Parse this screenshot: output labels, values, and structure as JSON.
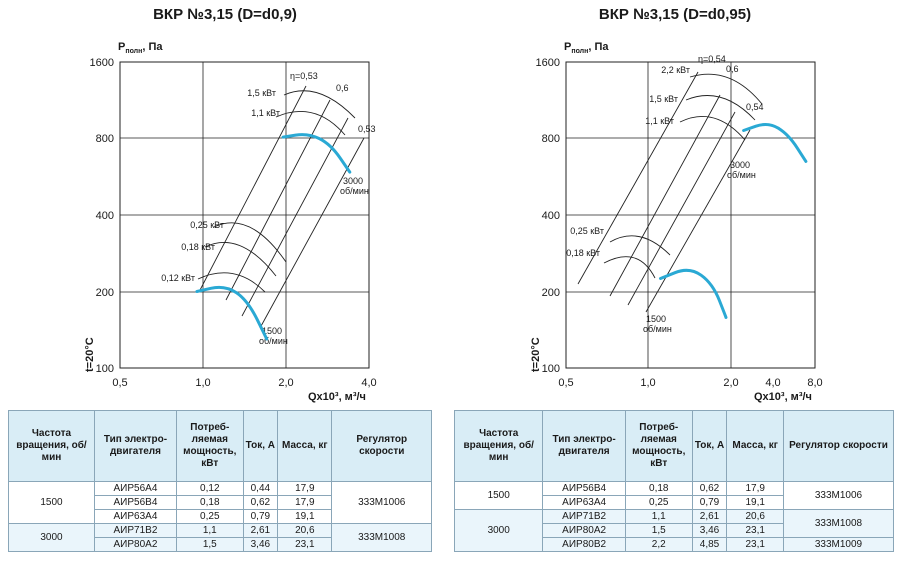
{
  "charts": [
    {
      "title": "ВКР №3,15 (D=d0,9)",
      "ylabel": "Pполн, Па",
      "ylabel_main": "P",
      "ylabel_sub": "полн",
      "ylabel_unit": ", Па",
      "xlabel": "Qx10³, м³/ч",
      "temp_label": "t=20°C",
      "yticks": [
        "1600",
        "800",
        "400",
        "200",
        "100"
      ],
      "xticks": [
        "0,5",
        "1,0",
        "2,0",
        "4,0"
      ],
      "power_labels_high": [
        "1,5 кВт",
        "1,1 кВт"
      ],
      "power_labels_low": [
        "0,25 кВт",
        "0,18 кВт",
        "0,12 кВт"
      ],
      "eff_labels": [
        "η=0,53",
        "0,6",
        "0,53"
      ],
      "speed_high": [
        "3000",
        "об/мин"
      ],
      "speed_low": [
        "1500",
        "об/мин"
      ]
    },
    {
      "title": "ВКР №3,15 (D=d0,95)",
      "ylabel": "Pполн, Па",
      "ylabel_main": "P",
      "ylabel_sub": "полн",
      "ylabel_unit": ", Па",
      "xlabel": "Qx10³, м³/ч",
      "temp_label": "t=20°C",
      "yticks": [
        "1600",
        "800",
        "400",
        "200",
        "100"
      ],
      "xticks": [
        "0,5",
        "1,0",
        "2,0",
        "4,0",
        "8,0"
      ],
      "power_labels_high": [
        "2,2 кВт",
        "1,5 кВт",
        "1,1 кВт"
      ],
      "power_labels_low": [
        "0,25 кВт",
        "0,18 кВт"
      ],
      "eff_labels": [
        "η=0,54",
        "0,6",
        "0,54"
      ],
      "speed_high": [
        "3000",
        "об/мин"
      ],
      "speed_low": [
        "1500",
        "об/мин"
      ]
    }
  ],
  "chart_data": [
    {
      "type": "line",
      "title": "ВКР №3,15 (D=d0,9)",
      "xlabel": "Qx10³, м³/ч",
      "ylabel": "Pполн, Па",
      "xscale": "log",
      "yscale": "log",
      "xlim": [
        0.5,
        4.0
      ],
      "ylim": [
        100,
        1600
      ],
      "grid": true,
      "series": [
        {
          "name": "1500 об/мин",
          "x": [
            0.95,
            1.2,
            1.45,
            1.7
          ],
          "y": [
            200,
            212,
            185,
            130
          ]
        },
        {
          "name": "3000 об/мин",
          "x": [
            1.95,
            2.4,
            2.9,
            3.4
          ],
          "y": [
            810,
            840,
            760,
            590
          ]
        }
      ]
    },
    {
      "type": "line",
      "title": "ВКР №3,15 (D=d0,95)",
      "xlabel": "Qx10³, м³/ч",
      "ylabel": "Pполн, Па",
      "xscale": "log",
      "yscale": "log",
      "xlim": [
        0.5,
        8.0
      ],
      "ylim": [
        100,
        1600
      ],
      "grid": true,
      "series": [
        {
          "name": "1500 об/мин",
          "x": [
            1.1,
            1.4,
            1.7,
            1.9
          ],
          "y": [
            225,
            250,
            215,
            158
          ]
        },
        {
          "name": "3000 об/мин",
          "x": [
            2.2,
            2.7,
            3.2,
            3.7
          ],
          "y": [
            860,
            930,
            830,
            650
          ]
        }
      ]
    }
  ],
  "tables": [
    {
      "headers": [
        "Частота вращения, об/мин",
        "Тип электро-двигателя",
        "Потреб-ляемая мощность, кВт",
        "Ток, А",
        "Масса, кг",
        "Регулятор скорости"
      ],
      "rows": [
        [
          "АИР56А4",
          "0,12",
          "0,44",
          "17,9"
        ],
        [
          "АИР56В4",
          "0,18",
          "0,62",
          "17,9"
        ],
        [
          "АИР63А4",
          "0,25",
          "0,79",
          "19,1"
        ],
        [
          "АИР71В2",
          "1,1",
          "2,61",
          "20,6"
        ],
        [
          "АИР80А2",
          "1,5",
          "3,46",
          "23,1"
        ]
      ],
      "speeds": [
        "1500",
        "3000"
      ],
      "regulators": [
        "333М1006",
        "333М1008"
      ]
    },
    {
      "headers": [
        "Частота вращения, об/мин",
        "Тип электро-двигателя",
        "Потреб-ляемая мощность, кВт",
        "Ток, А",
        "Масса, кг",
        "Регулятор скорости"
      ],
      "rows": [
        [
          "АИР56В4",
          "0,18",
          "0,62",
          "17,9"
        ],
        [
          "АИР63А4",
          "0,25",
          "0,79",
          "19,1"
        ],
        [
          "АИР71В2",
          "1,1",
          "2,61",
          "20,6"
        ],
        [
          "АИР80А2",
          "1,5",
          "3,46",
          "23,1"
        ],
        [
          "АИР80В2",
          "2,2",
          "4,85",
          "23,1"
        ]
      ],
      "speeds": [
        "1500",
        "3000"
      ],
      "regulators": [
        "333М1006",
        "333М1008",
        "333М1009"
      ]
    }
  ],
  "colors": {
    "curve": "#2aa9d4",
    "grid": "#222222",
    "header_bg": "#d9edf6"
  }
}
